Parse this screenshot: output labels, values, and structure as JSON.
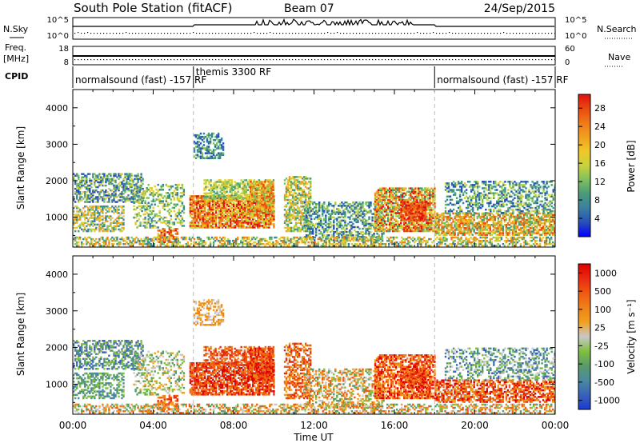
{
  "header": {
    "station": "South Pole Station (fitACF)",
    "beam": "Beam 07",
    "date": "24/Sep/2015"
  },
  "top_panels": {
    "nsky_label": "N.Sky",
    "nsky_ticks": [
      "10^5",
      "10^0"
    ],
    "nsearch_label": "N.Search",
    "nsearch_ticks": [
      "10^5",
      "10^0"
    ],
    "freq_label_1": "Freq.",
    "freq_label_2": "[MHz]",
    "freq_ticks": [
      "18",
      "8"
    ],
    "nave_label": "Nave",
    "nave_ticks": [
      "60",
      "0"
    ],
    "cpid_label": "CPID"
  },
  "cpid_segments": [
    {
      "label": "normalsound (fast) -157 RF",
      "start_h": 0,
      "end_h": 6
    },
    {
      "label": "themis 3300 RF",
      "start_h": 6,
      "end_h": 18
    },
    {
      "label": "normalsound (fast) -157 RF",
      "start_h": 18,
      "end_h": 24
    }
  ],
  "colors": {
    "power_scale": [
      "#0000ff",
      "#2a4fb8",
      "#3a7fa0",
      "#4a9a7a",
      "#7fc060",
      "#c8d23c",
      "#f0c828",
      "#f0a020",
      "#f07a18",
      "#e84a10",
      "#e01010"
    ],
    "velocity_scale": [
      "#1a3ad0",
      "#3a62b8",
      "#4a8aa0",
      "#5a9a6a",
      "#80c040",
      "#c8c8c8",
      "#f0a020",
      "#f08018",
      "#f05a10",
      "#e82a10",
      "#e00000"
    ]
  },
  "chart_data": [
    {
      "type": "heatmap",
      "panel": "power",
      "ylabel": "Slant Range [km]",
      "ylim": [
        180,
        4500
      ],
      "yticks": [
        "1000",
        "2000",
        "3000",
        "4000"
      ],
      "xlim": [
        0,
        24
      ],
      "colorbar_label": "Power [dB]",
      "colorbar_ticks": [
        "4",
        "8",
        "12",
        "16",
        "20",
        "24",
        "28"
      ],
      "colorbar_range": [
        0,
        30
      ]
    },
    {
      "type": "heatmap",
      "panel": "velocity",
      "ylabel": "Slant Range [km]",
      "ylim": [
        180,
        4500
      ],
      "yticks": [
        "1000",
        "2000",
        "3000",
        "4000"
      ],
      "xlim": [
        0,
        24
      ],
      "xlabel": "Time UT",
      "xticks": [
        "00:00",
        "04:00",
        "08:00",
        "12:00",
        "16:00",
        "20:00",
        "00:00"
      ],
      "colorbar_label": "Velocity [m s⁻¹]",
      "colorbar_ticks": [
        "1000",
        "500",
        "100",
        "25",
        "-25",
        "-100",
        "-500",
        "-1000"
      ]
    }
  ]
}
